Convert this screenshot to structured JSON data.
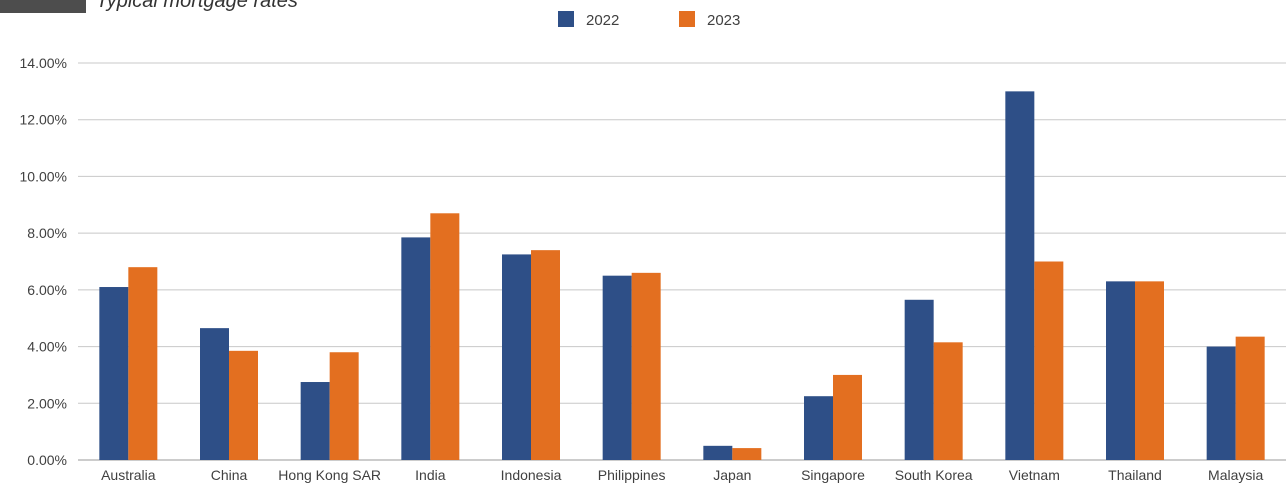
{
  "chart_data": {
    "type": "bar",
    "title": "Typical mortgage rates",
    "categories": [
      "Australia",
      "China",
      "Hong Kong SAR",
      "India",
      "Indonesia",
      "Philippines",
      "Japan",
      "Singapore",
      "South Korea",
      "Vietnam",
      "Thailand",
      "Malaysia"
    ],
    "series": [
      {
        "name": "2022",
        "color": "#2e4f87",
        "values": [
          6.1,
          4.65,
          2.75,
          7.85,
          7.25,
          6.5,
          0.5,
          2.25,
          5.65,
          13.0,
          6.3,
          4.0
        ]
      },
      {
        "name": "2023",
        "color": "#e36f20",
        "values": [
          6.8,
          3.85,
          3.8,
          8.7,
          7.4,
          6.6,
          0.42,
          3.0,
          4.15,
          7.0,
          6.3,
          4.35
        ]
      }
    ],
    "ylim": [
      0,
      14
    ],
    "yticks": [
      "0.00%",
      "2.00%",
      "4.00%",
      "6.00%",
      "8.00%",
      "10.00%",
      "12.00%",
      "14.00%"
    ],
    "grid": true,
    "legend_position": "top-center"
  }
}
